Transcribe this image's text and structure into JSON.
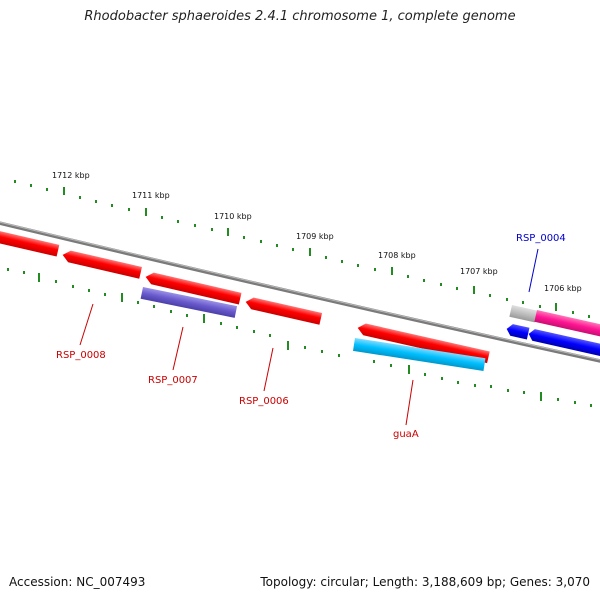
{
  "title": "Rhodobacter sphaeroides 2.4.1 chromosome 1, complete genome",
  "footer": {
    "accession": "Accession: NC_007493",
    "topology": "Topology: circular; Length: 3,188,609 bp; Genes: 3,070"
  },
  "colors": {
    "backbone": "#808080",
    "ticks": "#228b22",
    "gene_red": "#ff0000",
    "gene_purple": "#6a5acd",
    "gene_cyan": "#00bfff",
    "gene_blue": "#0000ff",
    "gene_pink": "#ff1493",
    "gene_gray": "#bebebe",
    "label_red": "#cc0000",
    "label_blue": "#0000cc"
  },
  "scale_labels": [
    "1712 kbp",
    "1711 kbp",
    "1710 kbp",
    "1709 kbp",
    "1708 kbp",
    "1707 kbp",
    "1706 kbp"
  ],
  "gene_labels": [
    {
      "text": "RSP_0008",
      "color": "red"
    },
    {
      "text": "RSP_0007",
      "color": "red"
    },
    {
      "text": "RSP_0006",
      "color": "red"
    },
    {
      "text": "guaA",
      "color": "red"
    },
    {
      "text": "RSP_0004",
      "color": "blue"
    }
  ]
}
